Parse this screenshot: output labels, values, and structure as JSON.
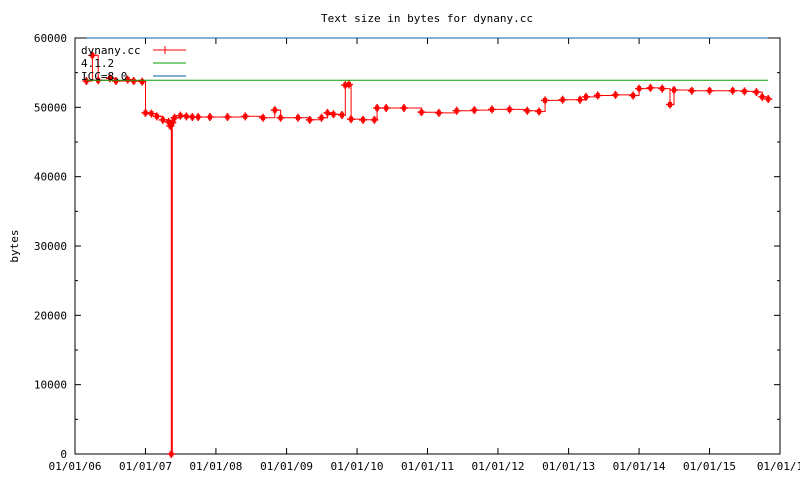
{
  "chart_data": {
    "type": "line",
    "title": "Text size in bytes for dynany.cc",
    "xlabel": "",
    "ylabel": "bytes",
    "ylim": [
      0,
      60000
    ],
    "xlim": [
      "2006-01-01",
      "2016-01-01"
    ],
    "yticks": [
      "0",
      "10000",
      "20000",
      "30000",
      "40000",
      "50000",
      "60000"
    ],
    "xticks": [
      "01/01/06",
      "01/01/07",
      "01/01/08",
      "01/01/09",
      "01/01/10",
      "01/01/11",
      "01/01/12",
      "01/01/13",
      "01/01/14",
      "01/01/15",
      "01/01/1"
    ],
    "grid": false,
    "legend_position": "top-left",
    "series": [
      {
        "name": "dynany.cc",
        "color": "#ff0000",
        "marker": "plus",
        "points": [
          [
            "2006-03-01",
            53800
          ],
          [
            "2006-04-01",
            57500
          ],
          [
            "2006-05-01",
            53900
          ],
          [
            "2006-07-01",
            54200
          ],
          [
            "2006-08-01",
            53800
          ],
          [
            "2006-10-01",
            54000
          ],
          [
            "2006-11-01",
            53800
          ],
          [
            "2006-12-15",
            53700
          ],
          [
            "2007-01-01",
            49200
          ],
          [
            "2007-02-01",
            49100
          ],
          [
            "2007-03-01",
            48700
          ],
          [
            "2007-04-01",
            48200
          ],
          [
            "2007-05-01",
            47900
          ],
          [
            "2007-05-10",
            47300
          ],
          [
            "2007-05-15",
            0
          ],
          [
            "2007-05-20",
            47800
          ],
          [
            "2007-06-01",
            48500
          ],
          [
            "2007-07-01",
            48800
          ],
          [
            "2007-08-01",
            48700
          ],
          [
            "2007-09-01",
            48600
          ],
          [
            "2007-10-01",
            48600
          ],
          [
            "2007-12-01",
            48600
          ],
          [
            "2008-03-01",
            48600
          ],
          [
            "2008-06-01",
            48700
          ],
          [
            "2008-09-01",
            48500
          ],
          [
            "2008-11-01",
            49600
          ],
          [
            "2008-12-01",
            48500
          ],
          [
            "2009-03-01",
            48500
          ],
          [
            "2009-05-01",
            48200
          ],
          [
            "2009-07-01",
            48500
          ],
          [
            "2009-08-01",
            49200
          ],
          [
            "2009-09-01",
            49000
          ],
          [
            "2009-10-15",
            48900
          ],
          [
            "2009-11-01",
            53200
          ],
          [
            "2009-11-20",
            53300
          ],
          [
            "2009-12-01",
            48300
          ],
          [
            "2010-02-01",
            48200
          ],
          [
            "2010-04-01",
            48200
          ],
          [
            "2010-04-15",
            49900
          ],
          [
            "2010-06-01",
            49900
          ],
          [
            "2010-09-01",
            49900
          ],
          [
            "2010-12-01",
            49300
          ],
          [
            "2011-03-01",
            49200
          ],
          [
            "2011-06-01",
            49500
          ],
          [
            "2011-09-01",
            49600
          ],
          [
            "2011-12-01",
            49700
          ],
          [
            "2012-03-01",
            49700
          ],
          [
            "2012-06-01",
            49500
          ],
          [
            "2012-08-01",
            49400
          ],
          [
            "2012-09-01",
            51000
          ],
          [
            "2012-12-01",
            51100
          ],
          [
            "2013-03-01",
            51100
          ],
          [
            "2013-04-01",
            51500
          ],
          [
            "2013-06-01",
            51700
          ],
          [
            "2013-09-01",
            51800
          ],
          [
            "2013-12-01",
            51700
          ],
          [
            "2014-01-01",
            52700
          ],
          [
            "2014-03-01",
            52800
          ],
          [
            "2014-05-01",
            52700
          ],
          [
            "2014-06-10",
            50400
          ],
          [
            "2014-07-01",
            52500
          ],
          [
            "2014-10-01",
            52400
          ],
          [
            "2015-01-01",
            52400
          ],
          [
            "2015-05-01",
            52400
          ],
          [
            "2015-07-01",
            52300
          ],
          [
            "2015-09-01",
            52200
          ],
          [
            "2015-10-01",
            51500
          ],
          [
            "2015-11-01",
            51200
          ]
        ]
      },
      {
        "name": "4.1.2",
        "color": "#00a000",
        "marker": "none",
        "points": [
          [
            "2006-03-01",
            53900
          ],
          [
            "2015-11-01",
            53900
          ]
        ]
      },
      {
        "name": "ICC=8.0",
        "color": "#0060ad",
        "marker": "none",
        "points": [
          [
            "2006-03-01",
            60000
          ],
          [
            "2015-11-01",
            60000
          ]
        ]
      }
    ]
  }
}
